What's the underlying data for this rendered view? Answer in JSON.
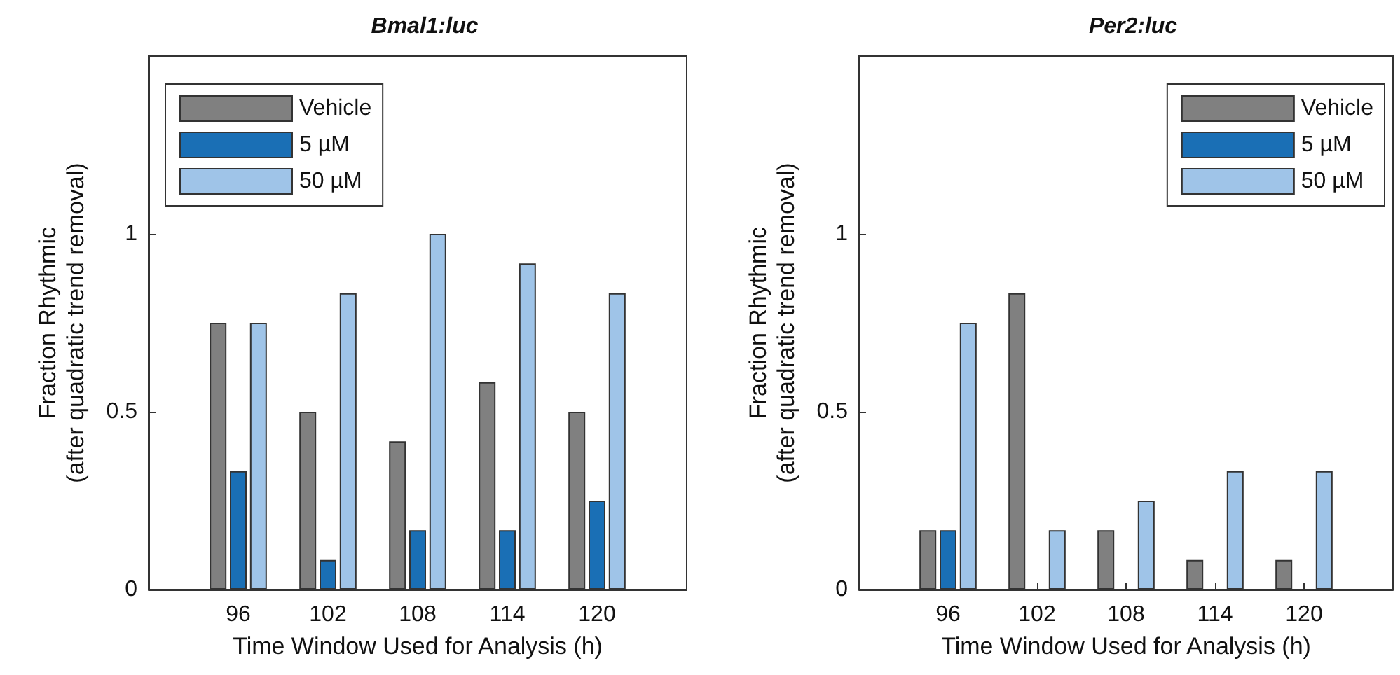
{
  "chart_data": [
    {
      "type": "bar",
      "title": "Bmal1:luc",
      "xlabel": "Time Window Used for Analysis (h)",
      "ylabel": "Fraction Rhythmic\n(after quadratic trend removal)",
      "x": [
        96,
        102,
        108,
        114,
        120
      ],
      "xlim": [
        90,
        126
      ],
      "xticks": [
        96,
        102,
        108,
        114,
        120
      ],
      "ylim": [
        0,
        1.5
      ],
      "yticks": [
        0,
        0.5,
        1
      ],
      "legend": "top left",
      "series": [
        {
          "name": "Vehicle",
          "color": "#808080",
          "values": [
            0.75,
            0.5,
            0.417,
            0.583,
            0.5
          ]
        },
        {
          "name": "5 µM",
          "color": "#1a6fb5",
          "values": [
            0.333,
            0.083,
            0.167,
            0.167,
            0.25
          ]
        },
        {
          "name": "50 µM",
          "color": "#9fc4e8",
          "values": [
            0.75,
            0.833,
            1,
            0.917,
            0.833
          ]
        }
      ]
    },
    {
      "type": "bar",
      "title": "Per2:luc",
      "xlabel": "Time Window Used for Analysis (h)",
      "ylabel": "Fraction Rhythmic\n(after quadratic trend removal)",
      "x": [
        96,
        102,
        108,
        114,
        120
      ],
      "xlim": [
        90,
        126
      ],
      "xticks": [
        96,
        102,
        108,
        114,
        120
      ],
      "ylim": [
        0,
        1.5
      ],
      "yticks": [
        0,
        0.5,
        1
      ],
      "legend": "top right",
      "series": [
        {
          "name": "Vehicle",
          "color": "#808080",
          "values": [
            0.167,
            0.833,
            0.167,
            0.083,
            0.083
          ]
        },
        {
          "name": "5 µM",
          "color": "#1a6fb5",
          "values": [
            0.167,
            0,
            0,
            0,
            0
          ]
        },
        {
          "name": "50 µM",
          "color": "#9fc4e8",
          "values": [
            0.75,
            0.167,
            0.25,
            0.333,
            0.333
          ]
        }
      ]
    }
  ]
}
